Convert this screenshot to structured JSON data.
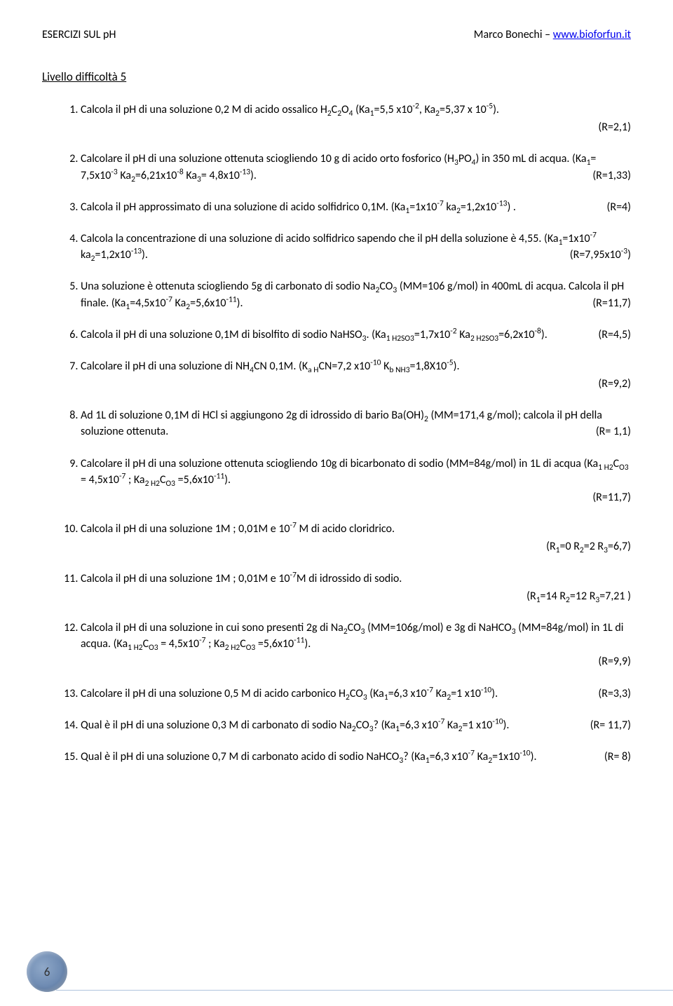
{
  "header": {
    "left": "ESERCIZI SUL pH",
    "right_author": "Marco Bonechi – ",
    "right_link": "www.bioforfun.it"
  },
  "level_title": "Livello difficoltà 5",
  "page_number": "6",
  "exercises": [
    {
      "text": "Calcola il pH di una soluzione 0,2 M di acido ossalico H₂C₂O₄ (Ka₁=5,5 x10⁻², Ka₂=5,37 x 10⁻⁵).",
      "answer": "(R=2,1)",
      "answer_below": true
    },
    {
      "text": "Calcolare il pH di una soluzione ottenuta sciogliendo 10 g di acido orto fosforico (H₃PO₄) in 350 mL di  acqua. (Ka₁= 7,5x10⁻³  Ka₂=6,21x10⁻⁸  Ka₃= 4,8x10⁻¹³).",
      "answer": "(R=1,33)"
    },
    {
      "text": "Calcola il pH approssimato di una soluzione di acido solfidrico 0,1M. (Ka₁=1x10⁻⁷ ka₂=1,2x10⁻¹³) .",
      "answer": "(R=4)"
    },
    {
      "text": "Calcola la concentrazione di una soluzione di acido solfidrico sapendo che il pH della soluzione è 4,55. (Ka₁=1x10⁻⁷ ka₂=1,2x10⁻¹³).",
      "answer": "(R=7,95x10⁻³)"
    },
    {
      "text": "Una soluzione è ottenuta sciogliendo 5g di carbonato di sodio Na₂CO₃ (MM=106 g/mol) in 400mL di acqua. Calcola il pH finale. (Ka₁=4,5x10⁻⁷  Ka₂=5,6x10⁻¹¹).",
      "answer": "(R=11,7)"
    },
    {
      "text": "Calcola il pH di una soluzione 0,1M di bisolfito di sodio NaHSO₃.  (Ka₁ ₕ₂ₛₒ₃=1,7x10⁻²  Ka₂ ₕ₂ₛₒ₃=6,2x10⁻⁸).",
      "answer": "(R=4,5)"
    },
    {
      "text": "Calcolare il pH di una soluzione di NH₄CN 0,1M. (Kₐ ₕCN=7,2 x10⁻¹⁰  K_b NH₃=1,8X10⁻⁵).",
      "answer": "(R=9,2)",
      "answer_below": true
    },
    {
      "text": "Ad 1L di soluzione 0,1M di HCl si aggiungono 2g di idrossido di bario Ba(OH)₂  (MM=171,4 g/mol); calcola il pH della soluzione ottenuta.",
      "answer": "(R= 1,1)"
    },
    {
      "text": "Calcolare il pH di una soluzione ottenuta sciogliendo 10g di bicarbonato di sodio  (MM=84g/mol) in 1L di acqua  (Ka₁ ₕ₂Cₒ₃ = 4,5x10⁻⁷ ;  Ka₂ ₕ₂Cₒ₃ =5,6x10⁻¹¹).",
      "answer": "(R=11,7)",
      "answer_below": true
    },
    {
      "text": "Calcola il pH di una soluzione 1M ; 0,01M e 10⁻⁷ M di acido cloridrico.",
      "answer": "(R₁=0   R₂=2  R₃=6,7)",
      "answer_below": true
    },
    {
      "text": "Calcola il pH di una soluzione 1M  ; 0,01M e 10⁻⁷M di idrossido di sodio.",
      "answer": "(R₁=14   R₂=12  R₃=7,21 )",
      "answer_below": true
    },
    {
      "text": "Calcola il pH di una soluzione in cui sono presenti 2g di Na₂CO₃ (MM=106g/mol)  e 3g di NaHCO₃ (MM=84g/mol) in 1L di acqua. (Ka₁ ₕ₂Cₒ₃ = 4,5x10⁻⁷ ;  Ka₂ ₕ₂Cₒ₃ =5,6x10⁻¹¹).",
      "answer": "(R=9,9)",
      "answer_below": true
    },
    {
      "text": "Calcolare il pH di una soluzione 0,5 M di acido carbonico H₂CO₃ (Ka₁=6,3 x10⁻⁷ Ka₂=1 x10⁻¹⁰).",
      "answer": "(R=3,3)"
    },
    {
      "text": "Qual è il pH di una soluzione 0,3 M di carbonato di sodio Na₂CO₃? (Ka₁=6,3 x10⁻⁷  Ka₂=1 x10⁻¹⁰).",
      "answer": "(R= 11,7)"
    },
    {
      "text": "Qual è il pH di una soluzione 0,7 M di carbonato acido di sodio NaHCO₃? (Ka₁=6,3 x10⁻⁷ Ka₂=1x10⁻¹⁰).",
      "answer": "(R= 8)"
    }
  ]
}
